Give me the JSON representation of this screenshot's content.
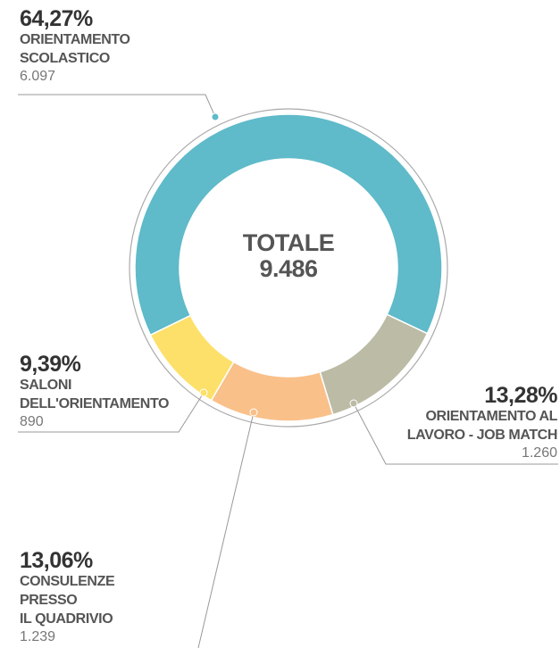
{
  "chart_data": {
    "type": "donut",
    "center_title": "TOTALE",
    "total": 9486,
    "total_label": "9.486",
    "categories": [
      "ORIENTAMENTO\nSCOLASTICO",
      "ORIENTAMENTO AL\nLAVORO - JOB MATCH",
      "CONSULENZE\nPRESSO\nIL QUADRIVIO",
      "SALONI\nDELL'ORIENTAMENTO"
    ],
    "values": [
      64.27,
      13.28,
      13.06,
      9.39
    ],
    "value_labels": [
      "64,27%",
      "13,28%",
      "13,06%",
      "9,39%"
    ],
    "counts": [
      6097,
      1260,
      1239,
      890
    ],
    "count_labels": [
      "6.097",
      "1.260",
      "1.239",
      "890"
    ],
    "colors": [
      "#5fbac9",
      "#bcbba5",
      "#f9c08a",
      "#fde06a"
    ]
  }
}
